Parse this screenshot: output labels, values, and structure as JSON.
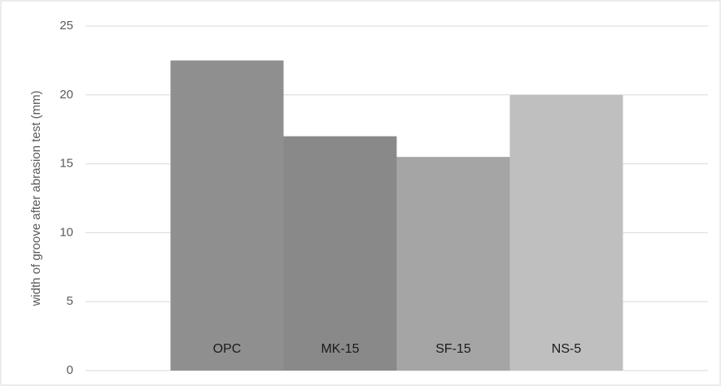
{
  "chart_data": {
    "type": "bar",
    "y_label": "width of groove after abrasion test (mm)",
    "categories": [
      "OPC",
      "MK-15",
      "SF-15",
      "NS-5"
    ],
    "values": [
      22.5,
      17,
      15.5,
      20
    ],
    "colors": [
      "#8f8f8f",
      "#898989",
      "#a5a5a5",
      "#bfbfbf"
    ],
    "ylim": [
      0,
      25
    ],
    "yticks": [
      0,
      5,
      10,
      15,
      20,
      25
    ],
    "grid": true
  }
}
